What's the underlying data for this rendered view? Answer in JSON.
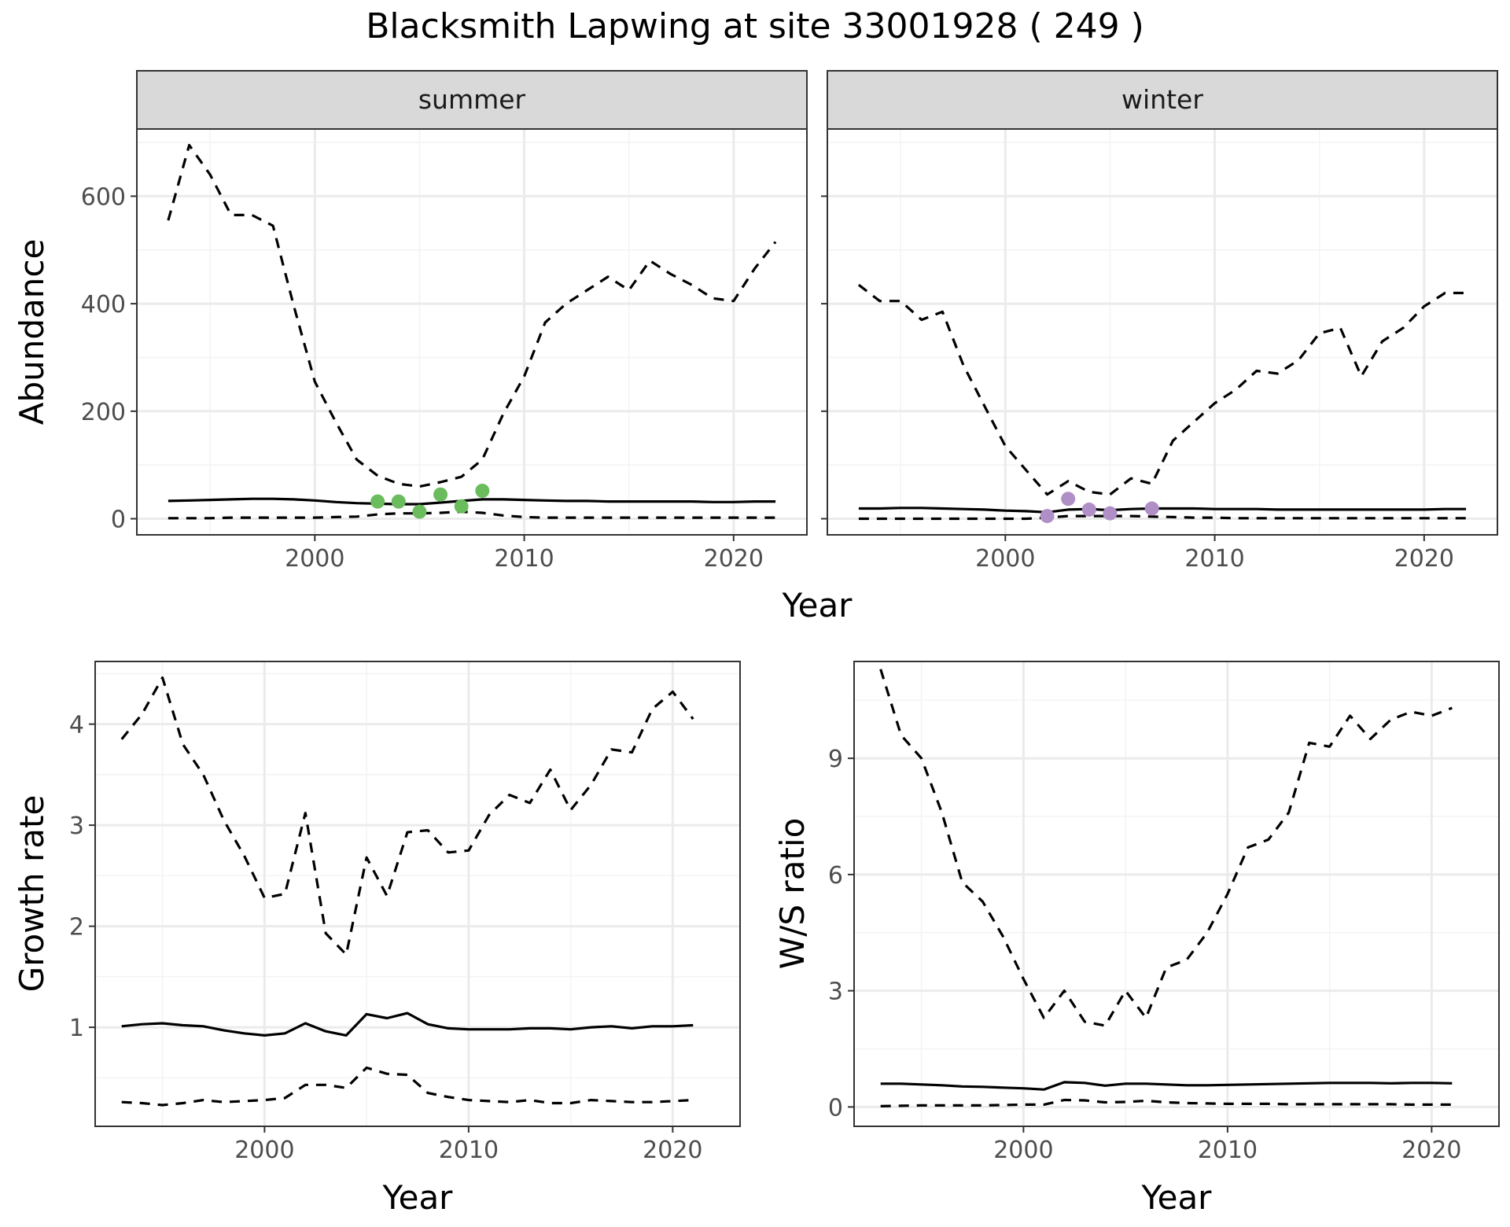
{
  "title": "Blacksmith Lapwing at site 33001928 ( 249 )",
  "colors": {
    "summer_points": "#6abc5c",
    "winter_points": "#b08fc7",
    "lines": "#000000",
    "strip_fill": "#d9d9d9",
    "grid": "#ebebeb",
    "border": "#333333"
  },
  "chart_data": [
    {
      "type": "line",
      "panel": "abundance-summer",
      "strip": "summer",
      "ylabel": "Abundance",
      "xlabel": "Year",
      "xlim": [
        1991.5,
        2023.5
      ],
      "ylim": [
        -30,
        725
      ],
      "x_ticks": [
        2000,
        2010,
        2020
      ],
      "y_ticks": [
        0,
        200,
        400,
        600
      ],
      "grid": true,
      "x": [
        1993,
        1994,
        1995,
        1996,
        1997,
        1998,
        1999,
        2000,
        2001,
        2002,
        2003,
        2004,
        2005,
        2006,
        2007,
        2008,
        2009,
        2010,
        2011,
        2012,
        2013,
        2014,
        2015,
        2016,
        2017,
        2018,
        2019,
        2020,
        2021,
        2022
      ],
      "series": [
        {
          "style": "solid",
          "values": [
            33,
            34,
            35,
            36,
            37,
            37,
            36,
            34,
            31,
            29,
            28,
            27,
            27,
            30,
            33,
            36,
            36,
            35,
            34,
            33,
            33,
            32,
            32,
            32,
            32,
            32,
            31,
            31,
            32,
            32
          ]
        },
        {
          "style": "dashed-upper",
          "values": [
            555,
            695,
            640,
            565,
            565,
            545,
            395,
            255,
            180,
            110,
            80,
            65,
            60,
            68,
            78,
            110,
            195,
            265,
            365,
            400,
            425,
            450,
            425,
            480,
            455,
            435,
            410,
            405,
            465,
            515
          ]
        },
        {
          "style": "dashed-lower",
          "values": [
            1,
            1,
            1,
            2,
            2,
            2,
            2,
            2,
            3,
            4,
            8,
            10,
            10,
            11,
            13,
            11,
            6,
            3,
            2,
            2,
            2,
            2,
            2,
            2,
            2,
            2,
            2,
            2,
            2,
            2
          ]
        }
      ],
      "points": {
        "x": [
          2003,
          2004,
          2005,
          2006,
          2007,
          2008
        ],
        "y": [
          32,
          32,
          13,
          45,
          23,
          52
        ]
      }
    },
    {
      "type": "line",
      "panel": "abundance-winter",
      "strip": "winter",
      "xlabel": "Year",
      "xlim": [
        1991.5,
        2023.5
      ],
      "ylim": [
        -30,
        725
      ],
      "x_ticks": [
        2000,
        2010,
        2020
      ],
      "y_ticks": [
        0,
        200,
        400,
        600
      ],
      "grid": true,
      "x": [
        1993,
        1994,
        1995,
        1996,
        1997,
        1998,
        1999,
        2000,
        2001,
        2002,
        2003,
        2004,
        2005,
        2006,
        2007,
        2008,
        2009,
        2010,
        2011,
        2012,
        2013,
        2014,
        2015,
        2016,
        2017,
        2018,
        2019,
        2020,
        2021,
        2022
      ],
      "series": [
        {
          "style": "solid",
          "values": [
            19,
            19,
            20,
            20,
            19,
            18,
            17,
            15,
            14,
            12,
            17,
            18,
            16,
            18,
            19,
            19,
            19,
            18,
            18,
            18,
            17,
            17,
            17,
            17,
            17,
            17,
            17,
            17,
            18,
            18
          ]
        },
        {
          "style": "dashed-upper",
          "values": [
            435,
            405,
            405,
            370,
            385,
            285,
            210,
            135,
            90,
            45,
            70,
            50,
            45,
            75,
            65,
            145,
            180,
            215,
            240,
            275,
            270,
            295,
            345,
            355,
            265,
            330,
            355,
            395,
            420,
            420
          ]
        },
        {
          "style": "dashed-lower",
          "values": [
            0,
            0,
            0,
            0,
            0,
            0,
            0,
            0,
            0,
            2,
            5,
            5,
            5,
            5,
            4,
            3,
            2,
            2,
            1,
            1,
            1,
            1,
            1,
            1,
            1,
            1,
            1,
            1,
            1,
            1
          ]
        }
      ],
      "points": {
        "x": [
          2002,
          2003,
          2004,
          2005,
          2007
        ],
        "y": [
          5,
          37,
          17,
          10,
          19
        ]
      }
    },
    {
      "type": "line",
      "panel": "growth-rate",
      "ylabel": "Growth rate",
      "xlabel": "Year",
      "xlim": [
        1991.7,
        2023.3
      ],
      "ylim": [
        0.02,
        4.62
      ],
      "x_ticks": [
        2000,
        2010,
        2020
      ],
      "y_ticks": [
        1,
        2,
        3,
        4
      ],
      "grid": true,
      "x": [
        1993,
        1994,
        1995,
        1996,
        1997,
        1998,
        1999,
        2000,
        2001,
        2002,
        2003,
        2004,
        2005,
        2006,
        2007,
        2008,
        2009,
        2010,
        2011,
        2012,
        2013,
        2014,
        2015,
        2016,
        2017,
        2018,
        2019,
        2020,
        2021
      ],
      "series": [
        {
          "style": "solid",
          "values": [
            1.01,
            1.03,
            1.04,
            1.02,
            1.01,
            0.97,
            0.94,
            0.92,
            0.94,
            1.04,
            0.96,
            0.92,
            1.13,
            1.09,
            1.14,
            1.03,
            0.99,
            0.98,
            0.98,
            0.98,
            0.99,
            0.99,
            0.98,
            1.0,
            1.01,
            0.99,
            1.01,
            1.01,
            1.02
          ]
        },
        {
          "style": "dashed-upper",
          "values": [
            3.85,
            4.1,
            4.46,
            3.8,
            3.5,
            3.05,
            2.7,
            2.28,
            2.32,
            3.12,
            1.93,
            1.72,
            2.68,
            2.3,
            2.93,
            2.95,
            2.73,
            2.75,
            3.1,
            3.3,
            3.22,
            3.55,
            3.15,
            3.4,
            3.75,
            3.72,
            4.15,
            4.32,
            4.05
          ]
        },
        {
          "style": "dashed-lower",
          "values": [
            0.26,
            0.25,
            0.23,
            0.25,
            0.28,
            0.26,
            0.27,
            0.28,
            0.3,
            0.43,
            0.43,
            0.4,
            0.6,
            0.54,
            0.53,
            0.35,
            0.31,
            0.28,
            0.27,
            0.26,
            0.28,
            0.25,
            0.25,
            0.28,
            0.27,
            0.26,
            0.26,
            0.27,
            0.28
          ]
        }
      ]
    },
    {
      "type": "line",
      "panel": "ws-ratio",
      "ylabel": "W/S ratio",
      "xlabel": "Year",
      "xlim": [
        1991.7,
        2023.3
      ],
      "ylim": [
        -0.5,
        11.5
      ],
      "x_ticks": [
        2000,
        2010,
        2020
      ],
      "y_ticks": [
        0,
        3,
        6,
        9
      ],
      "grid": true,
      "x": [
        1993,
        1994,
        1995,
        1996,
        1997,
        1998,
        1999,
        2000,
        2001,
        2002,
        2003,
        2004,
        2005,
        2006,
        2007,
        2008,
        2009,
        2010,
        2011,
        2012,
        2013,
        2014,
        2015,
        2016,
        2017,
        2018,
        2019,
        2020,
        2021
      ],
      "series": [
        {
          "style": "solid",
          "values": [
            0.6,
            0.6,
            0.58,
            0.56,
            0.53,
            0.52,
            0.5,
            0.48,
            0.45,
            0.64,
            0.62,
            0.55,
            0.6,
            0.6,
            0.58,
            0.56,
            0.56,
            0.57,
            0.58,
            0.59,
            0.6,
            0.61,
            0.62,
            0.62,
            0.62,
            0.61,
            0.62,
            0.62,
            0.61
          ]
        },
        {
          "style": "dashed-upper",
          "values": [
            11.3,
            9.6,
            9.0,
            7.6,
            5.8,
            5.3,
            4.4,
            3.3,
            2.3,
            3.0,
            2.2,
            2.1,
            3.0,
            2.3,
            3.6,
            3.8,
            4.5,
            5.5,
            6.7,
            6.9,
            7.6,
            9.4,
            9.3,
            10.1,
            9.5,
            10.0,
            10.2,
            10.1,
            10.3
          ]
        },
        {
          "style": "dashed-lower",
          "values": [
            0.02,
            0.03,
            0.04,
            0.04,
            0.04,
            0.04,
            0.05,
            0.06,
            0.06,
            0.18,
            0.17,
            0.12,
            0.13,
            0.16,
            0.12,
            0.1,
            0.09,
            0.08,
            0.08,
            0.08,
            0.07,
            0.07,
            0.07,
            0.07,
            0.07,
            0.07,
            0.06,
            0.06,
            0.06
          ]
        }
      ]
    }
  ]
}
